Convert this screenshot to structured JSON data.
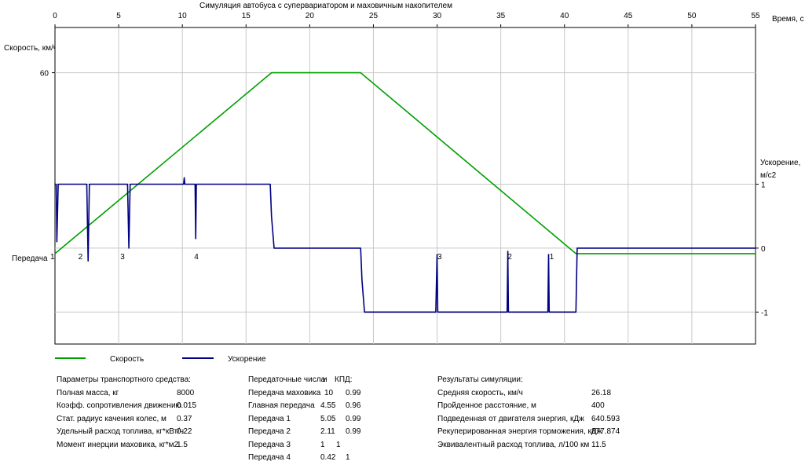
{
  "chart_data": {
    "type": "line",
    "title": "Симуляция автобуса с супервариатором и маховичным накопителем",
    "xlabel": "Время, с",
    "ylabel_left": "Скорость, км/ч",
    "ylabel_right_line1": "Ускорение,",
    "ylabel_right_line2": "м/с2",
    "gear_label": "Передача",
    "xlim": [
      0,
      55
    ],
    "x_ticks": [
      0,
      5,
      10,
      15,
      20,
      25,
      30,
      35,
      40,
      45,
      50,
      55
    ],
    "speed_ylim": [
      -30,
      75
    ],
    "speed_ticks": [
      60
    ],
    "accel_ylim": [
      -1.5,
      3.45
    ],
    "accel_ticks": [
      1,
      0,
      -1
    ],
    "grid": true,
    "series": [
      {
        "name": "Скорость",
        "color": "#00a000",
        "x": [
          0,
          17,
          24,
          40.9,
          55
        ],
        "y": [
          0,
          60,
          60,
          0,
          0
        ]
      },
      {
        "name": "Ускорение",
        "color": "#000080",
        "x": [
          0,
          0.1,
          0.15,
          0.25,
          0.35,
          0.5,
          2.5,
          2.6,
          2.7,
          2.8,
          5.7,
          5.8,
          5.9,
          6.0,
          10.1,
          10.15,
          10.2,
          11.0,
          11.05,
          11.1,
          11.2,
          16.9,
          17.0,
          17.2,
          24.0,
          24.1,
          24.3,
          29.9,
          30.0,
          30.05,
          30.1,
          35.5,
          35.55,
          35.6,
          35.7,
          38.7,
          38.75,
          38.8,
          38.9,
          40.9,
          41.0,
          55
        ],
        "y": [
          1,
          1,
          0.1,
          1,
          1,
          1,
          1,
          -0.2,
          1,
          1,
          1,
          0,
          1,
          1,
          1,
          1.1,
          1,
          1,
          0.15,
          1,
          1,
          1,
          0.5,
          0,
          0,
          -0.5,
          -1,
          -1,
          -0.1,
          -1,
          -1,
          -1,
          -0.05,
          -1,
          -1,
          -1,
          -0.1,
          -1,
          -1,
          -1,
          0,
          0
        ]
      }
    ],
    "gear_labels": [
      {
        "t": 0,
        "text": "1"
      },
      {
        "t": 2.2,
        "text": "2"
      },
      {
        "t": 5.5,
        "text": "3"
      },
      {
        "t": 11.3,
        "text": "4"
      },
      {
        "t": 30.4,
        "text": "3"
      },
      {
        "t": 35.9,
        "text": "2"
      },
      {
        "t": 39.2,
        "text": "1"
      }
    ]
  },
  "params": {
    "header": "Параметры транспортного средства:",
    "rows": [
      {
        "label": "Полная масса, кг",
        "value": "8000"
      },
      {
        "label": "Коэфф. сопротивления движению",
        "value": "0.015"
      },
      {
        "label": "Стат. радиус качения колес, м",
        "value": "0.37"
      },
      {
        "label": "Удельный расход топлива, кг*кВт/ч",
        "value": "0.22"
      },
      {
        "label": "Момент инерции маховика, кг*м2",
        "value": "1.5"
      }
    ]
  },
  "ratios": {
    "header_a": "Передаточные числа",
    "header_b": "и",
    "header_c": "КПД:",
    "rows": [
      {
        "label": "Передача маховика",
        "ratio": "10",
        "eff": "0.99"
      },
      {
        "label": "Главная передача",
        "ratio": "4.55",
        "eff": "0.96"
      },
      {
        "label": "Передача 1",
        "ratio": "5.05",
        "eff": "0.99"
      },
      {
        "label": "Передача 2",
        "ratio": "2.11",
        "eff": "0.99"
      },
      {
        "label": "Передача 3",
        "ratio": "1",
        "eff": "1"
      },
      {
        "label": "Передача 4",
        "ratio": "0.42",
        "eff": "1"
      }
    ]
  },
  "results": {
    "header": "Результаты симуляции:",
    "rows": [
      {
        "label": "Средняя скорость, км/ч",
        "value": "26.18"
      },
      {
        "label": "Пройденное расстояние, м",
        "value": "400"
      },
      {
        "label": "Подведенная от двигателя энергия, кДж",
        "value": "640.593"
      },
      {
        "label": "Рекуперированная энергия торможения, кДж",
        "value": "877.874"
      },
      {
        "label": "Эквивалентный расход топлива, л/100 км",
        "value": "11.5"
      }
    ]
  }
}
